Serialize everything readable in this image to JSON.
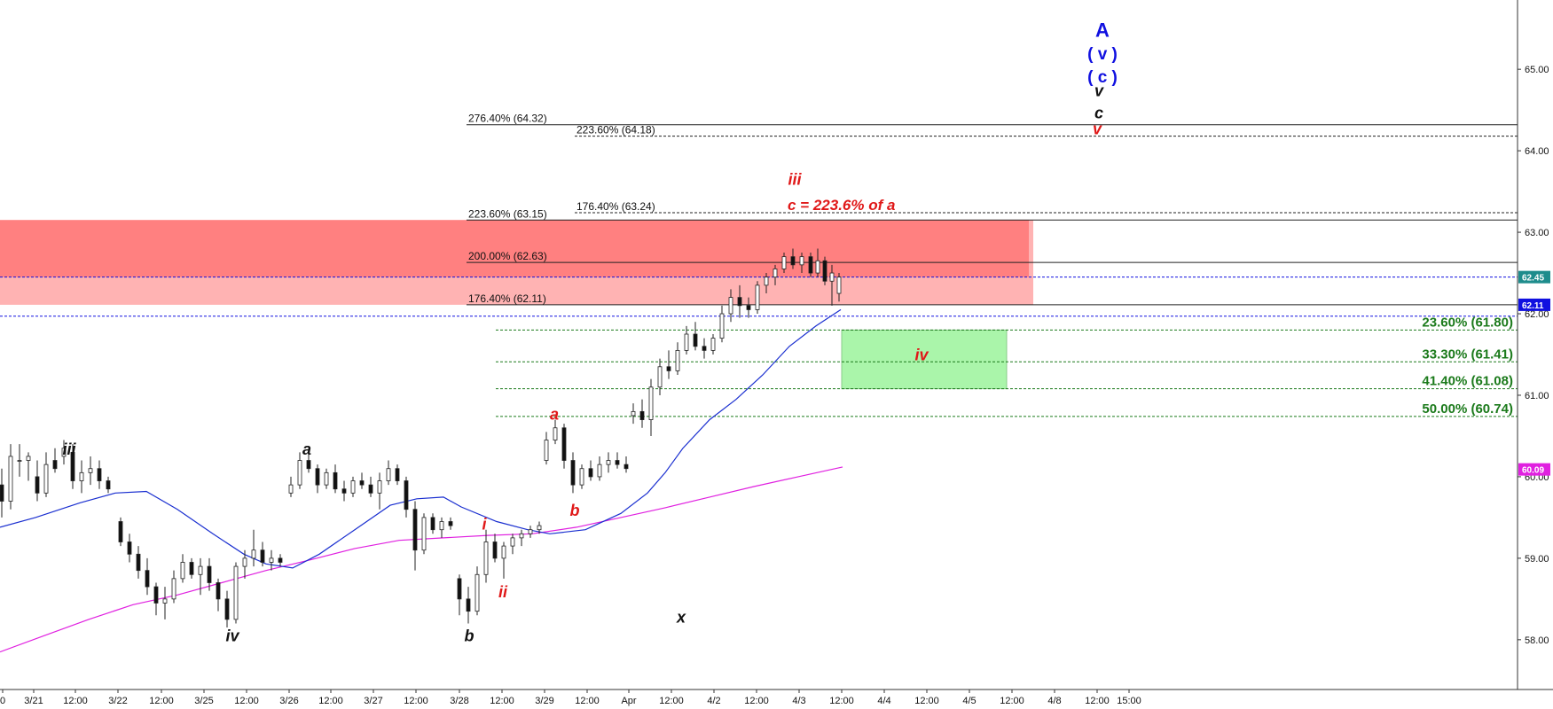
{
  "chart_data": {
    "type": "candlestick",
    "y_axis": {
      "ylim": [
        57.15,
        65.85
      ],
      "ticks": [
        "58.00",
        "59.00",
        "60.00",
        "61.00",
        "62.00",
        "63.00",
        "64.00",
        "65.00"
      ],
      "side": "right"
    },
    "x_axis": {
      "x_labels": [
        {
          "label": "0",
          "x": 3
        },
        {
          "label": "3/21",
          "x": 38
        },
        {
          "label": "12:00",
          "x": 85
        },
        {
          "label": "3/22",
          "x": 133
        },
        {
          "label": "12:00",
          "x": 182
        },
        {
          "label": "3/25",
          "x": 230
        },
        {
          "label": "12:00",
          "x": 278
        },
        {
          "label": "3/26",
          "x": 326
        },
        {
          "label": "12:00",
          "x": 373
        },
        {
          "label": "3/27",
          "x": 421
        },
        {
          "label": "12:00",
          "x": 469
        },
        {
          "label": "3/28",
          "x": 518
        },
        {
          "label": "12:00",
          "x": 566
        },
        {
          "label": "3/29",
          "x": 614
        },
        {
          "label": "12:00",
          "x": 662
        },
        {
          "label": "Apr",
          "x": 709
        },
        {
          "label": "12:00",
          "x": 757
        },
        {
          "label": "4/2",
          "x": 805
        },
        {
          "label": "12:00",
          "x": 853
        },
        {
          "label": "4/3",
          "x": 901
        },
        {
          "label": "12:00",
          "x": 949
        },
        {
          "label": "4/4",
          "x": 997
        },
        {
          "label": "12:00",
          "x": 1045
        },
        {
          "label": "4/5",
          "x": 1093
        },
        {
          "label": "12:00",
          "x": 1141
        },
        {
          "label": "4/8",
          "x": 1189
        },
        {
          "label": "12:00",
          "x": 1237
        },
        {
          "label": "15:00",
          "x": 1273
        }
      ]
    },
    "price_tags": [
      {
        "label": "62.45",
        "value": 62.45,
        "color": "#1e8c8c"
      },
      {
        "label": "62.11",
        "value": 62.11,
        "color": "#1010e0"
      },
      {
        "label": "60.09",
        "value": 60.09,
        "color": "#e020e0"
      }
    ],
    "fib_extensions": [
      {
        "label": "276.40% (64.32)",
        "value": 64.32,
        "style": "solid"
      },
      {
        "label": "223.60% (64.18)",
        "value": 64.18,
        "style": "dashed"
      },
      {
        "label": "223.60% (63.15)",
        "value": 63.15,
        "style": "solid"
      },
      {
        "label": "176.40% (63.24)",
        "value": 63.24,
        "style": "dashed"
      },
      {
        "label": "200.00% (62.63)",
        "value": 62.63,
        "style": "solid"
      },
      {
        "label": "176.40% (62.11)",
        "value": 62.11,
        "style": "solid"
      }
    ],
    "fib_retracements": [
      {
        "label": "23.60% (61.80)",
        "value": 61.8
      },
      {
        "label": "33.30% (61.41)",
        "value": 61.41
      },
      {
        "label": "41.40% (61.08)",
        "value": 61.08
      },
      {
        "label": "50.00% (60.74)",
        "value": 60.74
      }
    ],
    "reference_lines": [
      {
        "value": 62.45,
        "color": "#1010e0",
        "style": "dashed"
      },
      {
        "value": 61.97,
        "color": "#1010e0",
        "style": "dashed"
      }
    ],
    "zones": [
      {
        "name": "resistance-zone",
        "y_top": 63.15,
        "y_bottom": 62.11,
        "color": "#ff8080"
      },
      {
        "name": "support-zone",
        "y_top": 61.8,
        "y_bottom": 61.08,
        "color": "#aaf5aa"
      }
    ],
    "wave_labels_black": [
      {
        "text": "iii",
        "x": 78,
        "value": 60.27
      },
      {
        "text": "iv",
        "x": 262,
        "value": 57.98
      },
      {
        "text": "a",
        "x": 346,
        "value": 60.27
      },
      {
        "text": "b",
        "x": 529,
        "value": 57.98
      },
      {
        "text": "x",
        "x": 768,
        "value": 58.21
      },
      {
        "text": "v",
        "x": 1239,
        "value": 64.67
      },
      {
        "text": "c",
        "x": 1239,
        "value": 64.4
      }
    ],
    "wave_labels_red": [
      {
        "text": "a",
        "x": 625,
        "value": 60.7
      },
      {
        "text": "b",
        "x": 648,
        "value": 59.52
      },
      {
        "text": "i",
        "x": 546,
        "value": 59.35
      },
      {
        "text": "ii",
        "x": 567,
        "value": 58.52
      },
      {
        "text": "iii",
        "x": 896,
        "value": 63.58
      },
      {
        "text": "iv",
        "x": 1039,
        "value": 61.43
      },
      {
        "text": "c = 223.6% of a",
        "x": 888,
        "value": 63.27
      },
      {
        "text": "v",
        "x": 1237,
        "value": 64.2
      }
    ],
    "wave_labels_blue": [
      {
        "text": "A",
        "x": 1243,
        "value": 65.4
      },
      {
        "text": "( v )",
        "x": 1243,
        "value": 65.12
      },
      {
        "text": "( c )",
        "x": 1243,
        "value": 64.84
      }
    ],
    "ma_blue": [
      [
        0,
        59.38
      ],
      [
        40,
        59.5
      ],
      [
        90,
        59.68
      ],
      [
        130,
        59.8
      ],
      [
        165,
        59.82
      ],
      [
        200,
        59.6
      ],
      [
        240,
        59.3
      ],
      [
        275,
        59.05
      ],
      [
        300,
        58.93
      ],
      [
        330,
        58.88
      ],
      [
        360,
        59.05
      ],
      [
        400,
        59.35
      ],
      [
        440,
        59.65
      ],
      [
        470,
        59.73
      ],
      [
        500,
        59.75
      ],
      [
        520,
        59.63
      ],
      [
        560,
        59.45
      ],
      [
        595,
        59.35
      ],
      [
        620,
        59.3
      ],
      [
        660,
        59.35
      ],
      [
        700,
        59.55
      ],
      [
        730,
        59.8
      ],
      [
        750,
        60.05
      ],
      [
        770,
        60.35
      ],
      [
        800,
        60.7
      ],
      [
        830,
        60.95
      ],
      [
        860,
        61.25
      ],
      [
        890,
        61.6
      ],
      [
        920,
        61.85
      ],
      [
        948,
        62.05
      ]
    ],
    "ma_magenta": [
      [
        0,
        57.85
      ],
      [
        50,
        58.05
      ],
      [
        100,
        58.25
      ],
      [
        150,
        58.43
      ],
      [
        200,
        58.55
      ],
      [
        250,
        58.7
      ],
      [
        300,
        58.85
      ],
      [
        350,
        58.98
      ],
      [
        400,
        59.12
      ],
      [
        450,
        59.22
      ],
      [
        500,
        59.25
      ],
      [
        550,
        59.28
      ],
      [
        600,
        59.3
      ],
      [
        650,
        59.38
      ],
      [
        700,
        59.5
      ],
      [
        750,
        59.62
      ],
      [
        800,
        59.75
      ],
      [
        850,
        59.88
      ],
      [
        900,
        60.0
      ],
      [
        950,
        60.12
      ]
    ],
    "candles": [
      [
        2,
        59.9,
        60.1,
        59.5,
        59.7
      ],
      [
        12,
        59.7,
        60.4,
        59.6,
        60.25
      ],
      [
        22,
        60.2,
        60.4,
        60.0,
        60.2
      ],
      [
        32,
        60.2,
        60.3,
        59.95,
        60.25
      ],
      [
        42,
        60.0,
        60.2,
        59.7,
        59.8
      ],
      [
        52,
        59.8,
        60.3,
        59.75,
        60.15
      ],
      [
        62,
        60.2,
        60.35,
        60.05,
        60.1
      ],
      [
        72,
        60.25,
        60.45,
        60.15,
        60.35
      ],
      [
        82,
        60.3,
        60.4,
        59.85,
        59.95
      ],
      [
        92,
        59.95,
        60.2,
        59.8,
        60.05
      ],
      [
        102,
        60.05,
        60.25,
        59.9,
        60.1
      ],
      [
        112,
        60.1,
        60.2,
        59.85,
        59.95
      ],
      [
        122,
        59.95,
        60.0,
        59.8,
        59.85
      ],
      [
        136,
        59.45,
        59.5,
        59.15,
        59.2
      ],
      [
        146,
        59.2,
        59.3,
        58.95,
        59.05
      ],
      [
        156,
        59.05,
        59.15,
        58.75,
        58.85
      ],
      [
        166,
        58.85,
        59.0,
        58.55,
        58.65
      ],
      [
        176,
        58.65,
        58.7,
        58.3,
        58.45
      ],
      [
        186,
        58.45,
        58.65,
        58.25,
        58.5
      ],
      [
        196,
        58.5,
        58.85,
        58.45,
        58.75
      ],
      [
        206,
        58.75,
        59.05,
        58.7,
        58.95
      ],
      [
        216,
        58.95,
        59.0,
        58.75,
        58.8
      ],
      [
        226,
        58.8,
        59.0,
        58.55,
        58.9
      ],
      [
        236,
        58.9,
        59.0,
        58.6,
        58.7
      ],
      [
        246,
        58.7,
        58.75,
        58.35,
        58.5
      ],
      [
        256,
        58.5,
        58.6,
        58.15,
        58.25
      ],
      [
        266,
        58.25,
        58.95,
        58.2,
        58.9
      ],
      [
        276,
        58.9,
        59.1,
        58.75,
        59.0
      ],
      [
        286,
        59.0,
        59.35,
        58.9,
        59.1
      ],
      [
        296,
        59.1,
        59.2,
        58.9,
        58.95
      ],
      [
        306,
        58.95,
        59.1,
        58.85,
        59.0
      ],
      [
        316,
        59.0,
        59.05,
        58.9,
        58.95
      ],
      [
        328,
        59.8,
        60.0,
        59.75,
        59.9
      ],
      [
        338,
        59.9,
        60.3,
        59.85,
        60.2
      ],
      [
        348,
        60.2,
        60.35,
        60.05,
        60.1
      ],
      [
        358,
        60.1,
        60.15,
        59.8,
        59.9
      ],
      [
        368,
        59.9,
        60.1,
        59.85,
        60.05
      ],
      [
        378,
        60.05,
        60.15,
        59.8,
        59.85
      ],
      [
        388,
        59.85,
        59.95,
        59.7,
        59.8
      ],
      [
        398,
        59.8,
        60.0,
        59.75,
        59.95
      ],
      [
        408,
        59.95,
        60.05,
        59.85,
        59.9
      ],
      [
        418,
        59.9,
        60.0,
        59.75,
        59.8
      ],
      [
        428,
        59.8,
        60.05,
        59.6,
        59.95
      ],
      [
        438,
        59.95,
        60.2,
        59.9,
        60.1
      ],
      [
        448,
        60.1,
        60.15,
        59.9,
        59.95
      ],
      [
        458,
        59.95,
        60.0,
        59.5,
        59.6
      ],
      [
        468,
        59.6,
        59.7,
        58.85,
        59.1
      ],
      [
        478,
        59.1,
        59.55,
        59.05,
        59.5
      ],
      [
        488,
        59.5,
        59.55,
        59.3,
        59.35
      ],
      [
        498,
        59.35,
        59.5,
        59.25,
        59.45
      ],
      [
        508,
        59.45,
        59.5,
        59.35,
        59.4
      ],
      [
        518,
        58.75,
        58.8,
        58.3,
        58.5
      ],
      [
        528,
        58.5,
        58.65,
        58.2,
        58.35
      ],
      [
        538,
        58.35,
        58.9,
        58.3,
        58.8
      ],
      [
        548,
        58.8,
        59.35,
        58.7,
        59.2
      ],
      [
        558,
        59.2,
        59.3,
        58.95,
        59.0
      ],
      [
        568,
        59.0,
        59.2,
        58.75,
        59.15
      ],
      [
        578,
        59.15,
        59.3,
        59.05,
        59.25
      ],
      [
        588,
        59.25,
        59.35,
        59.15,
        59.3
      ],
      [
        598,
        59.3,
        59.4,
        59.25,
        59.35
      ],
      [
        608,
        59.35,
        59.45,
        59.3,
        59.4
      ],
      [
        616,
        60.2,
        60.55,
        60.15,
        60.45
      ],
      [
        626,
        60.45,
        60.7,
        60.4,
        60.6
      ],
      [
        636,
        60.6,
        60.65,
        60.1,
        60.2
      ],
      [
        646,
        60.2,
        60.3,
        59.8,
        59.9
      ],
      [
        656,
        59.9,
        60.15,
        59.85,
        60.1
      ],
      [
        666,
        60.1,
        60.2,
        59.95,
        60.0
      ],
      [
        676,
        60.0,
        60.25,
        59.95,
        60.15
      ],
      [
        686,
        60.15,
        60.3,
        60.05,
        60.2
      ],
      [
        696,
        60.2,
        60.3,
        60.1,
        60.15
      ],
      [
        706,
        60.15,
        60.25,
        60.05,
        60.1
      ],
      [
        714,
        60.75,
        60.9,
        60.65,
        60.8
      ],
      [
        724,
        60.8,
        60.95,
        60.6,
        60.7
      ],
      [
        734,
        60.7,
        61.2,
        60.5,
        61.1
      ],
      [
        744,
        61.1,
        61.45,
        61.0,
        61.35
      ],
      [
        754,
        61.35,
        61.55,
        61.2,
        61.3
      ],
      [
        764,
        61.3,
        61.65,
        61.25,
        61.55
      ],
      [
        774,
        61.55,
        61.85,
        61.5,
        61.75
      ],
      [
        784,
        61.75,
        61.9,
        61.55,
        61.6
      ],
      [
        794,
        61.6,
        61.7,
        61.45,
        61.55
      ],
      [
        804,
        61.55,
        61.75,
        61.5,
        61.7
      ],
      [
        814,
        61.7,
        62.1,
        61.65,
        62.0
      ],
      [
        824,
        62.0,
        62.3,
        61.9,
        62.2
      ],
      [
        834,
        62.2,
        62.35,
        61.95,
        62.1
      ],
      [
        844,
        62.1,
        62.2,
        61.95,
        62.05
      ],
      [
        854,
        62.05,
        62.4,
        62.0,
        62.35
      ],
      [
        864,
        62.35,
        62.5,
        62.25,
        62.45
      ],
      [
        874,
        62.45,
        62.6,
        62.35,
        62.55
      ],
      [
        884,
        62.55,
        62.75,
        62.5,
        62.7
      ],
      [
        894,
        62.7,
        62.8,
        62.55,
        62.6
      ],
      [
        904,
        62.6,
        62.75,
        62.5,
        62.7
      ],
      [
        914,
        62.7,
        62.75,
        62.45,
        62.5
      ],
      [
        922,
        62.5,
        62.8,
        62.45,
        62.65
      ],
      [
        930,
        62.65,
        62.7,
        62.35,
        62.4
      ],
      [
        938,
        62.4,
        62.6,
        62.1,
        62.5
      ],
      [
        946,
        62.25,
        62.5,
        62.15,
        62.45
      ]
    ]
  }
}
